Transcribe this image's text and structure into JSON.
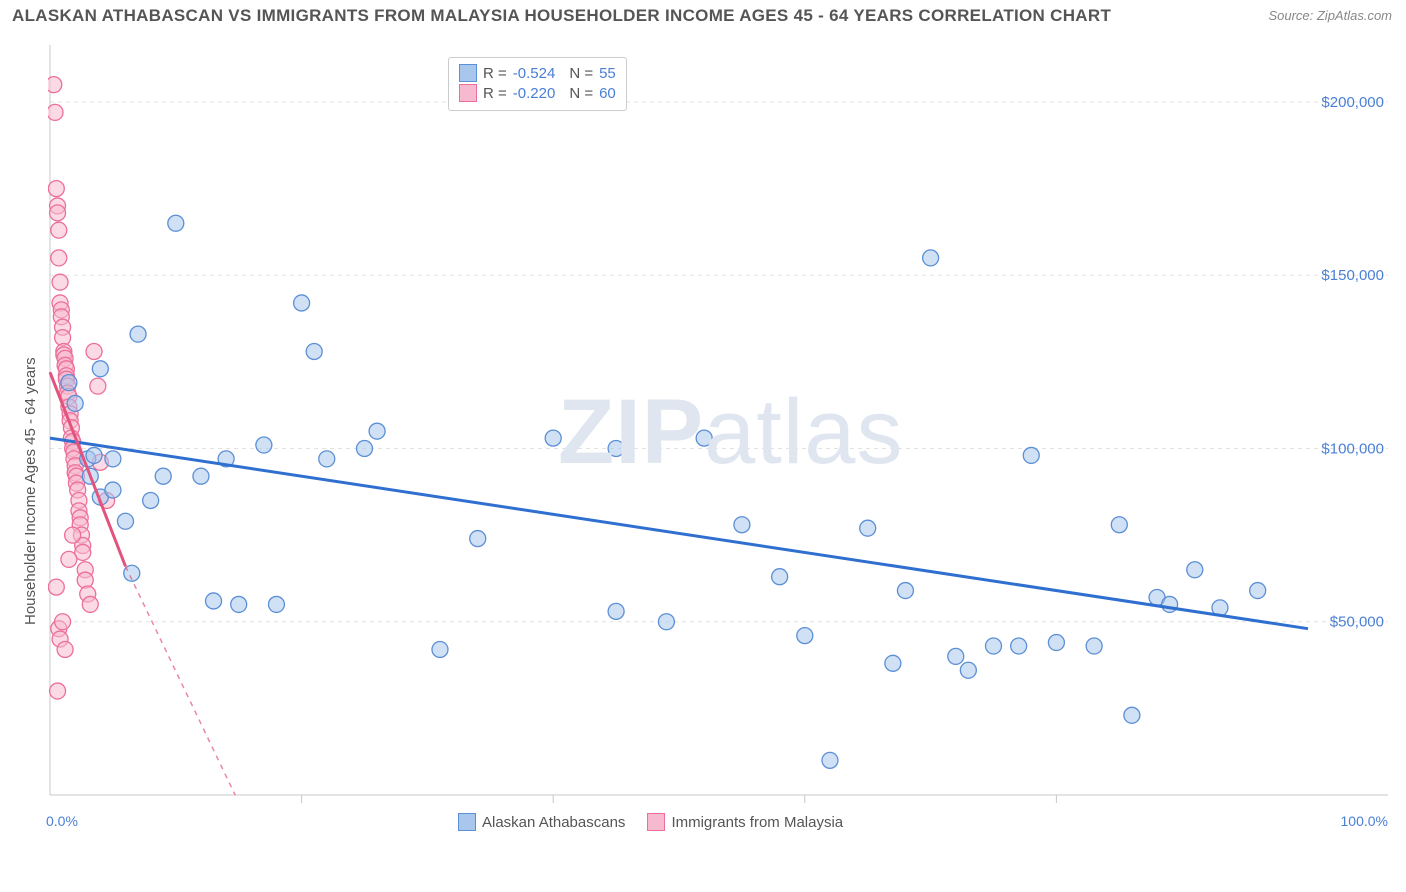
{
  "title": "ALASKAN ATHABASCAN VS IMMIGRANTS FROM MALAYSIA HOUSEHOLDER INCOME AGES 45 - 64 YEARS CORRELATION CHART",
  "source": "Source: ZipAtlas.com",
  "ylabel": "Householder Income Ages 45 - 64 years",
  "watermark_bold": "ZIP",
  "watermark_light": "atlas",
  "colors": {
    "blue_fill": "#a9c6ec",
    "blue_stroke": "#5b8fd6",
    "pink_fill": "#f7b9cf",
    "pink_stroke": "#ec6f9a",
    "blue_line": "#2f6fd0",
    "pink_line": "#e2537e",
    "grid": "#e2e2e2",
    "axis": "#c8c8c8",
    "text": "#555555",
    "axis_label": "#4a7fd6"
  },
  "axes": {
    "xmin": 0,
    "xmax": 100,
    "ymin": 0,
    "ymax": 215000,
    "yticks": [
      50000,
      100000,
      150000,
      200000
    ],
    "ytick_labels": [
      "$50,000",
      "$100,000",
      "$150,000",
      "$200,000"
    ],
    "xtick_min_label": "0.0%",
    "xtick_max_label": "100.0%",
    "xticks_minor": [
      20,
      40,
      60,
      80
    ]
  },
  "legend_top": {
    "series1": {
      "r": "-0.524",
      "n": "55"
    },
    "series2": {
      "r": "-0.220",
      "n": "60"
    }
  },
  "legend_bottom": {
    "series1": "Alaskan Athabascans",
    "series2": "Immigrants from Malaysia"
  },
  "trend_lines": {
    "blue": {
      "x1": 0,
      "y1": 103000,
      "x2": 100,
      "y2": 48000
    },
    "pink_solid": {
      "x1": 0,
      "y1": 122000,
      "x2": 6,
      "y2": 66000
    },
    "pink_dashed": {
      "x1": 6,
      "y1": 66000,
      "x2": 20,
      "y2": -40000
    }
  },
  "marker_radius": 8,
  "series_blue": [
    [
      1.5,
      119000
    ],
    [
      2,
      113000
    ],
    [
      3,
      97000
    ],
    [
      3.2,
      92000
    ],
    [
      3.5,
      98000
    ],
    [
      4,
      86000
    ],
    [
      4,
      123000
    ],
    [
      5,
      97000
    ],
    [
      5,
      88000
    ],
    [
      6,
      79000
    ],
    [
      6.5,
      64000
    ],
    [
      7,
      133000
    ],
    [
      8,
      85000
    ],
    [
      9,
      92000
    ],
    [
      10,
      165000
    ],
    [
      12,
      92000
    ],
    [
      13,
      56000
    ],
    [
      14,
      97000
    ],
    [
      15,
      55000
    ],
    [
      17,
      101000
    ],
    [
      18,
      55000
    ],
    [
      20,
      142000
    ],
    [
      21,
      128000
    ],
    [
      22,
      97000
    ],
    [
      25,
      100000
    ],
    [
      26,
      105000
    ],
    [
      31,
      42000
    ],
    [
      34,
      74000
    ],
    [
      40,
      103000
    ],
    [
      45,
      100000
    ],
    [
      45,
      53000
    ],
    [
      49,
      50000
    ],
    [
      52,
      103000
    ],
    [
      55,
      78000
    ],
    [
      58,
      63000
    ],
    [
      60,
      46000
    ],
    [
      62,
      10000
    ],
    [
      65,
      77000
    ],
    [
      67,
      38000
    ],
    [
      68,
      59000
    ],
    [
      70,
      155000
    ],
    [
      72,
      40000
    ],
    [
      73,
      36000
    ],
    [
      75,
      43000
    ],
    [
      77,
      43000
    ],
    [
      78,
      98000
    ],
    [
      80,
      44000
    ],
    [
      83,
      43000
    ],
    [
      85,
      78000
    ],
    [
      86,
      23000
    ],
    [
      88,
      57000
    ],
    [
      89,
      55000
    ],
    [
      91,
      65000
    ],
    [
      93,
      54000
    ],
    [
      96,
      59000
    ]
  ],
  "series_pink": [
    [
      0.3,
      205000
    ],
    [
      0.4,
      197000
    ],
    [
      0.5,
      175000
    ],
    [
      0.6,
      170000
    ],
    [
      0.6,
      168000
    ],
    [
      0.7,
      163000
    ],
    [
      0.7,
      155000
    ],
    [
      0.8,
      148000
    ],
    [
      0.8,
      142000
    ],
    [
      0.9,
      140000
    ],
    [
      0.9,
      138000
    ],
    [
      1.0,
      135000
    ],
    [
      1.0,
      132000
    ],
    [
      1.1,
      128000
    ],
    [
      1.1,
      127000
    ],
    [
      1.2,
      126000
    ],
    [
      1.2,
      124000
    ],
    [
      1.3,
      123000
    ],
    [
      1.3,
      121000
    ],
    [
      1.3,
      120000
    ],
    [
      1.4,
      118000
    ],
    [
      1.4,
      116000
    ],
    [
      1.5,
      115000
    ],
    [
      1.5,
      112000
    ],
    [
      1.6,
      110000
    ],
    [
      1.6,
      108000
    ],
    [
      1.7,
      106000
    ],
    [
      1.7,
      103000
    ],
    [
      1.8,
      102000
    ],
    [
      1.8,
      100000
    ],
    [
      1.9,
      99000
    ],
    [
      1.9,
      97000
    ],
    [
      2.0,
      95000
    ],
    [
      2.0,
      93000
    ],
    [
      2.1,
      92000
    ],
    [
      2.1,
      90000
    ],
    [
      2.2,
      88000
    ],
    [
      2.3,
      85000
    ],
    [
      2.3,
      82000
    ],
    [
      2.4,
      80000
    ],
    [
      2.4,
      78000
    ],
    [
      2.5,
      75000
    ],
    [
      2.6,
      72000
    ],
    [
      2.6,
      70000
    ],
    [
      2.8,
      65000
    ],
    [
      2.8,
      62000
    ],
    [
      3.0,
      58000
    ],
    [
      3.2,
      55000
    ],
    [
      0.5,
      60000
    ],
    [
      0.7,
      48000
    ],
    [
      0.8,
      45000
    ],
    [
      1.0,
      50000
    ],
    [
      1.2,
      42000
    ],
    [
      0.6,
      30000
    ],
    [
      1.5,
      68000
    ],
    [
      1.8,
      75000
    ],
    [
      3.5,
      128000
    ],
    [
      3.8,
      118000
    ],
    [
      4.0,
      96000
    ],
    [
      4.5,
      85000
    ]
  ]
}
